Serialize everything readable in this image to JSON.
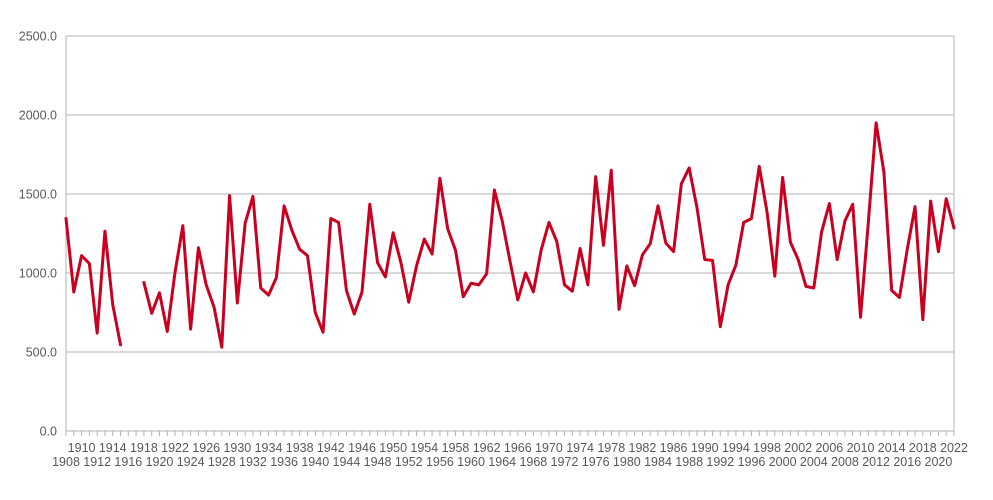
{
  "chart_data": {
    "type": "line",
    "title": "",
    "xlabel": "",
    "ylabel": "",
    "ylim": [
      0,
      2500
    ],
    "y_ticks": [
      "0.0",
      "500.0",
      "1000.0",
      "1500.0",
      "2000.0",
      "2500.0"
    ],
    "grid": "horizontal",
    "legend": "none",
    "x": [
      1908,
      1909,
      1910,
      1911,
      1912,
      1913,
      1914,
      1915,
      1916,
      1917,
      1918,
      1919,
      1920,
      1921,
      1922,
      1923,
      1924,
      1925,
      1926,
      1927,
      1928,
      1929,
      1930,
      1931,
      1932,
      1933,
      1934,
      1935,
      1936,
      1937,
      1938,
      1939,
      1940,
      1941,
      1942,
      1943,
      1944,
      1945,
      1946,
      1947,
      1948,
      1949,
      1950,
      1951,
      1952,
      1953,
      1954,
      1955,
      1956,
      1957,
      1958,
      1959,
      1960,
      1961,
      1962,
      1963,
      1964,
      1965,
      1966,
      1967,
      1968,
      1969,
      1970,
      1971,
      1972,
      1973,
      1974,
      1975,
      1976,
      1977,
      1978,
      1979,
      1980,
      1981,
      1982,
      1983,
      1984,
      1985,
      1986,
      1987,
      1988,
      1989,
      1990,
      1991,
      1992,
      1993,
      1994,
      1995,
      1996,
      1997,
      1998,
      1999,
      2000,
      2001,
      2002,
      2003,
      2004,
      2005,
      2006,
      2007,
      2008,
      2009,
      2010,
      2011,
      2012,
      2013,
      2014,
      2015,
      2016,
      2017,
      2018,
      2019,
      2020,
      2021,
      2022
    ],
    "series": [
      {
        "color": "#c9001f",
        "values": [
          1345,
          880,
          1110,
          1060,
          620,
          1265,
          800,
          545,
          null,
          null,
          940,
          745,
          875,
          630,
          1005,
          1300,
          645,
          1160,
          925,
          785,
          530,
          1490,
          810,
          1315,
          1485,
          905,
          860,
          970,
          1425,
          1270,
          1150,
          1110,
          750,
          625,
          1345,
          1320,
          890,
          740,
          880,
          1435,
          1065,
          975,
          1255,
          1065,
          815,
          1045,
          1215,
          1120,
          1600,
          1280,
          1145,
          850,
          935,
          925,
          995,
          1525,
          1330,
          1075,
          830,
          1000,
          880,
          1145,
          1320,
          1200,
          925,
          885,
          1155,
          925,
          1610,
          1175,
          1650,
          770,
          1045,
          920,
          1115,
          1185,
          1425,
          1190,
          1135,
          1565,
          1665,
          1415,
          1085,
          1080,
          660,
          925,
          1050,
          1320,
          1345,
          1675,
          1385,
          980,
          1605,
          1195,
          1085,
          915,
          905,
          1260,
          1440,
          1085,
          1330,
          1435,
          720,
          1320,
          1950,
          1640,
          890,
          845,
          1150,
          1420,
          705,
          1455,
          1135,
          1470,
          1285
        ]
      }
    ],
    "x_tick_labels_row1": [
      1910,
      1914,
      1918,
      1922,
      1926,
      1930,
      1934,
      1938,
      1942,
      1946,
      1950,
      1954,
      1958,
      1962,
      1966,
      1970,
      1974,
      1978,
      1982,
      1986,
      1990,
      1994,
      1998,
      2002,
      2006,
      2010,
      2014,
      2018,
      2022
    ],
    "x_tick_labels_row2": [
      1908,
      1912,
      1916,
      1920,
      1924,
      1928,
      1932,
      1936,
      1940,
      1944,
      1948,
      1952,
      1956,
      1960,
      1964,
      1968,
      1972,
      1976,
      1980,
      1984,
      1988,
      1992,
      1996,
      2000,
      2004,
      2008,
      2012,
      2016,
      2020
    ]
  }
}
